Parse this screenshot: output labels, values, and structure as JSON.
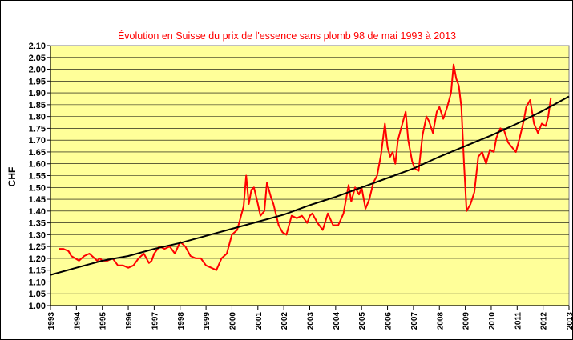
{
  "chart_data": {
    "type": "line",
    "title": "Évolution en Suisse du prix de l'essence sans plomb 98 de mai 1993 à 2013",
    "xlabel": "",
    "ylabel": "CHF",
    "xlim": [
      1993,
      2013
    ],
    "ylim": [
      1.0,
      2.1
    ],
    "y_tick_step": 0.05,
    "x_ticks": [
      "1993",
      "1994",
      "1995",
      "1996",
      "1997",
      "1998",
      "1999",
      "2000",
      "2001",
      "2002",
      "2003",
      "2004",
      "2005",
      "2006",
      "2007",
      "2008",
      "2009",
      "2010",
      "2011",
      "2012",
      "2013"
    ],
    "y_ticks": [
      "1.00",
      "1.05",
      "1.10",
      "1.15",
      "1.20",
      "1.25",
      "1.30",
      "1.35",
      "1.40",
      "1.45",
      "1.50",
      "1.55",
      "1.60",
      "1.65",
      "1.70",
      "1.75",
      "1.80",
      "1.85",
      "1.90",
      "1.95",
      "2.00",
      "2.05",
      "2.10"
    ],
    "grid": true,
    "legend": "none",
    "series": [
      {
        "color": "#ff0000",
        "x": [
          1993.33,
          1993.5,
          1993.7,
          1993.8,
          1993.95,
          1994.1,
          1994.3,
          1994.5,
          1994.7,
          1994.8,
          1994.9,
          1995.0,
          1995.2,
          1995.4,
          1995.6,
          1995.8,
          1996.0,
          1996.2,
          1996.4,
          1996.6,
          1996.8,
          1996.9,
          1997.0,
          1997.2,
          1997.4,
          1997.6,
          1997.8,
          1998.0,
          1998.2,
          1998.4,
          1998.6,
          1998.8,
          1999.0,
          1999.2,
          1999.4,
          1999.6,
          1999.8,
          2000.0,
          2000.2,
          2000.3,
          2000.45,
          2000.55,
          2000.65,
          2000.75,
          2000.85,
          2001.0,
          2001.1,
          2001.25,
          2001.35,
          2001.5,
          2001.6,
          2001.8,
          2001.95,
          2002.1,
          2002.3,
          2002.5,
          2002.7,
          2002.9,
          2003.0,
          2003.1,
          2003.3,
          2003.5,
          2003.7,
          2003.9,
          2004.1,
          2004.3,
          2004.5,
          2004.6,
          2004.75,
          2004.9,
          2005.0,
          2005.15,
          2005.3,
          2005.45,
          2005.6,
          2005.75,
          2005.9,
          2006.0,
          2006.1,
          2006.2,
          2006.3,
          2006.4,
          2006.55,
          2006.7,
          2006.8,
          2006.95,
          2007.05,
          2007.2,
          2007.35,
          2007.5,
          2007.6,
          2007.75,
          2007.9,
          2008.0,
          2008.15,
          2008.3,
          2008.45,
          2008.55,
          2008.65,
          2008.75,
          2008.85,
          2008.95,
          2009.05,
          2009.2,
          2009.35,
          2009.5,
          2009.65,
          2009.8,
          2009.95,
          2010.1,
          2010.2,
          2010.35,
          2010.5,
          2010.65,
          2010.8,
          2010.95,
          2011.1,
          2011.25,
          2011.35,
          2011.5,
          2011.65,
          2011.8,
          2011.95,
          2012.1,
          2012.2,
          2012.3
        ],
        "y": [
          1.24,
          1.24,
          1.23,
          1.21,
          1.2,
          1.19,
          1.21,
          1.22,
          1.2,
          1.19,
          1.2,
          1.19,
          1.19,
          1.2,
          1.17,
          1.17,
          1.16,
          1.17,
          1.2,
          1.22,
          1.18,
          1.19,
          1.22,
          1.25,
          1.24,
          1.25,
          1.22,
          1.27,
          1.25,
          1.21,
          1.2,
          1.2,
          1.17,
          1.16,
          1.15,
          1.2,
          1.22,
          1.3,
          1.32,
          1.36,
          1.42,
          1.55,
          1.43,
          1.49,
          1.5,
          1.43,
          1.38,
          1.4,
          1.52,
          1.46,
          1.43,
          1.34,
          1.31,
          1.3,
          1.38,
          1.37,
          1.38,
          1.35,
          1.38,
          1.39,
          1.35,
          1.32,
          1.39,
          1.34,
          1.34,
          1.39,
          1.51,
          1.44,
          1.5,
          1.47,
          1.5,
          1.41,
          1.45,
          1.52,
          1.55,
          1.64,
          1.77,
          1.67,
          1.63,
          1.65,
          1.6,
          1.7,
          1.76,
          1.82,
          1.7,
          1.61,
          1.58,
          1.57,
          1.72,
          1.8,
          1.78,
          1.73,
          1.82,
          1.84,
          1.79,
          1.84,
          1.9,
          2.02,
          1.96,
          1.93,
          1.84,
          1.6,
          1.4,
          1.43,
          1.48,
          1.63,
          1.65,
          1.6,
          1.66,
          1.65,
          1.71,
          1.75,
          1.74,
          1.69,
          1.67,
          1.65,
          1.71,
          1.78,
          1.84,
          1.87,
          1.77,
          1.73,
          1.77,
          1.76,
          1.8,
          1.88
        ]
      },
      {
        "color": "#000000",
        "x": [
          1993.0,
          1994.0,
          1995.0,
          1996.0,
          1997.0,
          1998.0,
          1999.0,
          2000.0,
          2001.0,
          2002.0,
          2003.0,
          2004.0,
          2005.0,
          2006.0,
          2007.0,
          2008.0,
          2009.0,
          2010.0,
          2011.0,
          2012.0,
          2013.0
        ],
        "y": [
          1.13,
          1.16,
          1.19,
          1.21,
          1.24,
          1.265,
          1.295,
          1.325,
          1.355,
          1.385,
          1.425,
          1.46,
          1.5,
          1.54,
          1.58,
          1.63,
          1.675,
          1.72,
          1.77,
          1.825,
          1.885
        ]
      }
    ]
  }
}
